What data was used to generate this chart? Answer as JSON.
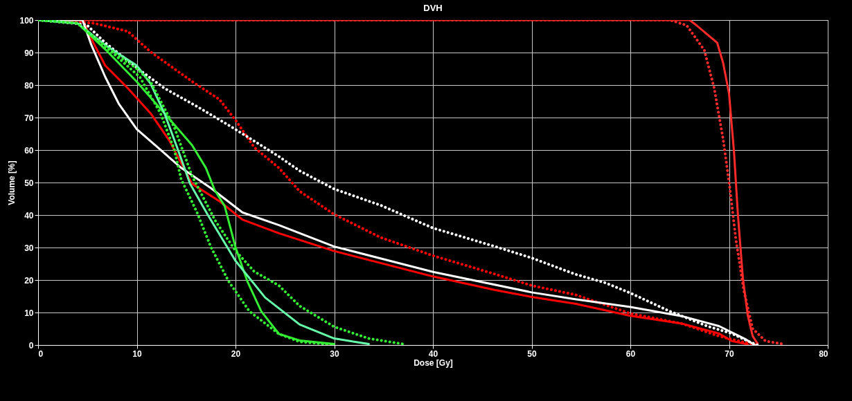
{
  "chart_data": {
    "type": "line",
    "title": "DVH",
    "xlabel": "Dose [Gy]",
    "ylabel": "Volume [%]",
    "xlim": [
      0,
      80
    ],
    "ylim": [
      0,
      100
    ],
    "xticks": [
      0,
      10,
      20,
      30,
      40,
      50,
      60,
      70,
      80
    ],
    "yticks": [
      0,
      10,
      20,
      30,
      40,
      50,
      60,
      70,
      80,
      90,
      100
    ],
    "grid": true,
    "marker": "none",
    "series": [
      {
        "color": "#ff2a2a",
        "line_style": "solid",
        "x": [
          0,
          66,
          66.7,
          68.8,
          69.4,
          70,
          70.5,
          70.9,
          71.4,
          71.9,
          72.4,
          72.9
        ],
        "values": [
          100,
          100,
          98.4,
          93,
          86.8,
          77.4,
          59.5,
          40,
          20.6,
          9,
          2.7,
          0.4
        ]
      },
      {
        "color": "#ff2a2a",
        "line_style": "dotted",
        "x": [
          0,
          64,
          65.7,
          67.5,
          68.5,
          69.4,
          70.1,
          70.7,
          71.5,
          72.4,
          73.7,
          75.5
        ],
        "values": [
          100,
          100,
          98.4,
          90.7,
          79,
          63.4,
          47.9,
          32.3,
          16.7,
          5,
          1.2,
          0.3
        ]
      },
      {
        "color": "#ff0000",
        "line_style": "dotted",
        "x": [
          0,
          5.7,
          9.1,
          11.4,
          15.6,
          18.4,
          20,
          21.9,
          24.4,
          26.5,
          30,
          34.7,
          40,
          46.3,
          50,
          54.4,
          60,
          65.2,
          69,
          71.6,
          72.9
        ],
        "values": [
          100,
          99,
          96.5,
          90.2,
          81.1,
          75.5,
          69.2,
          60.8,
          54.5,
          47.3,
          40.2,
          33.1,
          27.5,
          21.8,
          18.3,
          15.5,
          9.7,
          6.6,
          2.7,
          0.8,
          0
        ]
      },
      {
        "color": "#ff0000",
        "line_style": "solid",
        "x": [
          0,
          4.5,
          5.6,
          6.8,
          9.1,
          11.4,
          13.3,
          15.6,
          18.4,
          20.7,
          24.4,
          30,
          40,
          46.3,
          50,
          54.4,
          60,
          65.2,
          69,
          70.3,
          71.9
        ],
        "values": [
          100,
          100,
          93,
          86,
          79,
          71.3,
          62.9,
          49.6,
          44.2,
          38.6,
          34.4,
          28.9,
          21.1,
          16.9,
          14.8,
          12.7,
          9,
          6.6,
          3.5,
          1.2,
          0.2
        ]
      },
      {
        "color": "#ffffff",
        "line_style": "solid",
        "x": [
          0,
          4.5,
          5.4,
          6.8,
          8.2,
          10,
          12.4,
          14.5,
          17.5,
          20.7,
          24.4,
          30,
          40,
          50,
          54.4,
          60,
          65.2,
          69,
          71.6,
          72.6
        ],
        "values": [
          100,
          100,
          92.3,
          82.5,
          74.1,
          66.4,
          60.1,
          54.5,
          48.3,
          40.8,
          36.9,
          30.3,
          22.5,
          16.2,
          14.1,
          11.7,
          8.9,
          5.8,
          1.9,
          0
        ]
      },
      {
        "color": "#ffffff",
        "line_style": "dotted",
        "x": [
          0,
          4.9,
          6.8,
          10,
          12.8,
          16.1,
          19.6,
          24.4,
          26.5,
          30,
          34.7,
          40,
          46.3,
          50,
          54.4,
          57.5,
          60,
          63.9,
          67.8,
          70.3,
          71.9,
          72.9
        ],
        "values": [
          100,
          98.6,
          93,
          85.3,
          79,
          73.4,
          67.1,
          58,
          53.6,
          48,
          43,
          36,
          30.3,
          26.8,
          21.8,
          19.1,
          16,
          10.5,
          5.8,
          3.5,
          1.2,
          0
        ]
      },
      {
        "color": "#33ee33",
        "line_style": "solid",
        "x": [
          0,
          4,
          6.8,
          10,
          12.8,
          15.6,
          17,
          17.9,
          18.9,
          20,
          21.2,
          22.6,
          24.4,
          26.5,
          30
        ],
        "values": [
          100,
          99,
          91,
          81,
          71.3,
          61.5,
          54.5,
          47.6,
          42.8,
          30.1,
          19.6,
          10.4,
          3.4,
          1.4,
          0.3
        ]
      },
      {
        "color": "#66ffaa",
        "line_style": "solid",
        "x": [
          0,
          4,
          6.8,
          10,
          11.4,
          12.8,
          14,
          15.4,
          17.2,
          20,
          23,
          26.5,
          30,
          33.5
        ],
        "values": [
          100,
          99,
          92.3,
          86,
          80.4,
          71.3,
          61.5,
          49.6,
          40,
          25.9,
          14.6,
          6.3,
          2,
          0.3
        ]
      },
      {
        "color": "#33ee33",
        "line_style": "dotted",
        "x": [
          0,
          4,
          7.7,
          10.3,
          12.4,
          13.8,
          14.5,
          16.1,
          17.5,
          19.3,
          21.4,
          24.4,
          26.5,
          30
        ],
        "values": [
          100,
          99,
          89.5,
          82.5,
          71.3,
          60.1,
          51,
          40.8,
          30.2,
          19.6,
          10.4,
          3.4,
          1,
          0
        ]
      },
      {
        "color": "#33ee33",
        "line_style": "dotted",
        "x": [
          0,
          4,
          6.8,
          10,
          11.4,
          13.8,
          15.6,
          18,
          20,
          21.9,
          24.4,
          26.5,
          30,
          33.5,
          37
        ],
        "values": [
          100,
          99,
          92,
          85,
          81,
          67,
          52,
          38,
          29,
          22.6,
          18.3,
          12,
          5.6,
          2,
          0.3
        ]
      }
    ]
  }
}
